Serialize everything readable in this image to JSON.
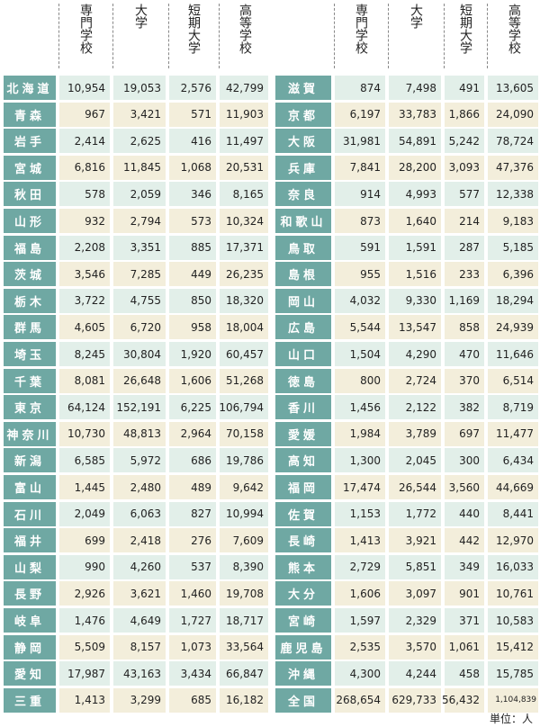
{
  "headers": [
    "専門学校",
    "大学",
    "短期大学",
    "高等学校"
  ],
  "left": [
    {
      "name": "北海道",
      "values": [
        "10,954",
        "19,053",
        "2,576",
        "42,799"
      ]
    },
    {
      "name": "青森",
      "values": [
        "967",
        "3,421",
        "571",
        "11,903"
      ]
    },
    {
      "name": "岩手",
      "values": [
        "2,414",
        "2,625",
        "416",
        "11,497"
      ]
    },
    {
      "name": "宮城",
      "values": [
        "6,816",
        "11,845",
        "1,068",
        "20,531"
      ]
    },
    {
      "name": "秋田",
      "values": [
        "578",
        "2,059",
        "346",
        "8,165"
      ]
    },
    {
      "name": "山形",
      "values": [
        "932",
        "2,794",
        "573",
        "10,324"
      ]
    },
    {
      "name": "福島",
      "values": [
        "2,208",
        "3,351",
        "885",
        "17,371"
      ]
    },
    {
      "name": "茨城",
      "values": [
        "3,546",
        "7,285",
        "449",
        "26,235"
      ]
    },
    {
      "name": "栃木",
      "values": [
        "3,722",
        "4,755",
        "850",
        "18,320"
      ]
    },
    {
      "name": "群馬",
      "values": [
        "4,605",
        "6,720",
        "958",
        "18,004"
      ]
    },
    {
      "name": "埼玉",
      "values": [
        "8,245",
        "30,804",
        "1,920",
        "60,457"
      ]
    },
    {
      "name": "千葉",
      "values": [
        "8,081",
        "26,648",
        "1,606",
        "51,268"
      ]
    },
    {
      "name": "東京",
      "values": [
        "64,124",
        "152,191",
        "6,225",
        "106,794"
      ]
    },
    {
      "name": "神奈川",
      "values": [
        "10,730",
        "48,813",
        "2,964",
        "70,158"
      ]
    },
    {
      "name": "新潟",
      "values": [
        "6,585",
        "5,972",
        "686",
        "19,786"
      ]
    },
    {
      "name": "富山",
      "values": [
        "1,445",
        "2,480",
        "489",
        "9,642"
      ]
    },
    {
      "name": "石川",
      "values": [
        "2,049",
        "6,063",
        "827",
        "10,994"
      ]
    },
    {
      "name": "福井",
      "values": [
        "699",
        "2,418",
        "276",
        "7,609"
      ]
    },
    {
      "name": "山梨",
      "values": [
        "990",
        "4,260",
        "537",
        "8,390"
      ]
    },
    {
      "name": "長野",
      "values": [
        "2,926",
        "3,621",
        "1,460",
        "19,708"
      ]
    },
    {
      "name": "岐阜",
      "values": [
        "1,476",
        "4,649",
        "1,727",
        "18,717"
      ]
    },
    {
      "name": "静岡",
      "values": [
        "5,509",
        "8,157",
        "1,073",
        "33,564"
      ]
    },
    {
      "name": "愛知",
      "values": [
        "17,987",
        "43,163",
        "3,434",
        "66,847"
      ]
    },
    {
      "name": "三重",
      "values": [
        "1,413",
        "3,299",
        "685",
        "16,182"
      ]
    }
  ],
  "right": [
    {
      "name": "滋賀",
      "values": [
        "874",
        "7,498",
        "491",
        "13,605"
      ]
    },
    {
      "name": "京都",
      "values": [
        "6,197",
        "33,783",
        "1,866",
        "24,090"
      ]
    },
    {
      "name": "大阪",
      "values": [
        "31,981",
        "54,891",
        "5,242",
        "78,724"
      ]
    },
    {
      "name": "兵庫",
      "values": [
        "7,841",
        "28,200",
        "3,093",
        "47,376"
      ]
    },
    {
      "name": "奈良",
      "values": [
        "914",
        "4,993",
        "577",
        "12,338"
      ]
    },
    {
      "name": "和歌山",
      "values": [
        "873",
        "1,640",
        "214",
        "9,183"
      ]
    },
    {
      "name": "鳥取",
      "values": [
        "591",
        "1,591",
        "287",
        "5,185"
      ]
    },
    {
      "name": "島根",
      "values": [
        "955",
        "1,516",
        "233",
        "6,396"
      ]
    },
    {
      "name": "岡山",
      "values": [
        "4,032",
        "9,330",
        "1,169",
        "18,294"
      ]
    },
    {
      "name": "広島",
      "values": [
        "5,544",
        "13,547",
        "858",
        "24,939"
      ]
    },
    {
      "name": "山口",
      "values": [
        "1,504",
        "4,290",
        "470",
        "11,646"
      ]
    },
    {
      "name": "徳島",
      "values": [
        "800",
        "2,724",
        "370",
        "6,514"
      ]
    },
    {
      "name": "香川",
      "values": [
        "1,456",
        "2,122",
        "382",
        "8,719"
      ]
    },
    {
      "name": "愛媛",
      "values": [
        "1,984",
        "3,789",
        "697",
        "11,477"
      ]
    },
    {
      "name": "高知",
      "values": [
        "1,300",
        "2,045",
        "300",
        "6,434"
      ]
    },
    {
      "name": "福岡",
      "values": [
        "17,474",
        "26,544",
        "3,560",
        "44,669"
      ]
    },
    {
      "name": "佐賀",
      "values": [
        "1,153",
        "1,772",
        "440",
        "8,441"
      ]
    },
    {
      "name": "長崎",
      "values": [
        "1,413",
        "3,921",
        "442",
        "12,970"
      ]
    },
    {
      "name": "熊本",
      "values": [
        "2,729",
        "5,851",
        "349",
        "16,033"
      ]
    },
    {
      "name": "大分",
      "values": [
        "1,606",
        "3,097",
        "901",
        "10,761"
      ]
    },
    {
      "name": "宮崎",
      "values": [
        "1,597",
        "2,329",
        "371",
        "10,583"
      ]
    },
    {
      "name": "鹿児島",
      "values": [
        "2,535",
        "3,570",
        "1,061",
        "15,412"
      ]
    },
    {
      "name": "沖縄",
      "values": [
        "4,300",
        "4,244",
        "458",
        "15,785"
      ]
    },
    {
      "name": "全国",
      "values": [
        "268,654",
        "629,733",
        "56,432",
        "1,104,839"
      ]
    }
  ],
  "unit": "単位：人"
}
